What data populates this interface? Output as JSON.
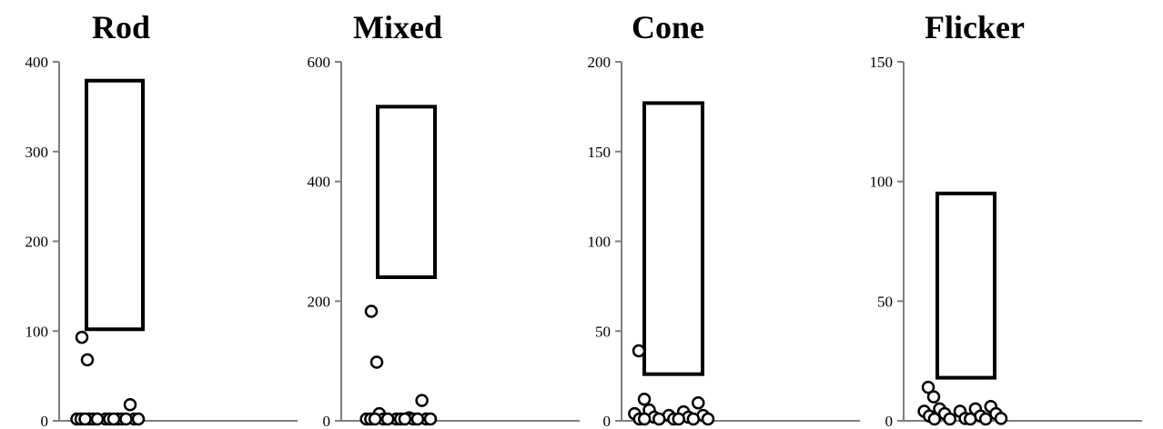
{
  "chart_data": [
    {
      "type": "box-scatter",
      "title": "Rod",
      "ylim": [
        0,
        400
      ],
      "yticks": [
        0,
        100,
        200,
        300,
        400
      ],
      "range_box": {
        "low": 102,
        "high": 379
      },
      "points": [
        93,
        68,
        18,
        2,
        1,
        1,
        0,
        0,
        0,
        0,
        0,
        0,
        0,
        0,
        0,
        0,
        0
      ]
    },
    {
      "type": "box-scatter",
      "title": "Mixed",
      "ylim": [
        0,
        600
      ],
      "yticks": [
        0,
        200,
        400,
        600
      ],
      "range_box": {
        "low": 240,
        "high": 525
      },
      "points": [
        183,
        98,
        34,
        12,
        5,
        3,
        2,
        1,
        0,
        0,
        0,
        0,
        0,
        0,
        0,
        0,
        0
      ]
    },
    {
      "type": "box-scatter",
      "title": "Cone",
      "ylim": [
        0,
        200
      ],
      "yticks": [
        0,
        50,
        100,
        150,
        200
      ],
      "range_box": {
        "low": 26,
        "high": 177
      },
      "points": [
        39,
        12,
        10,
        6,
        5,
        4,
        3,
        3,
        2,
        2,
        1,
        1,
        0,
        0,
        0,
        0,
        0
      ]
    },
    {
      "type": "box-scatter",
      "title": "Flicker",
      "ylim": [
        0,
        150
      ],
      "yticks": [
        0,
        50,
        100,
        150
      ],
      "range_box": {
        "low": 18,
        "high": 95
      },
      "points": [
        14,
        10,
        6,
        5,
        5,
        4,
        4,
        3,
        3,
        2,
        2,
        1,
        1,
        0,
        0,
        0,
        0
      ]
    }
  ]
}
